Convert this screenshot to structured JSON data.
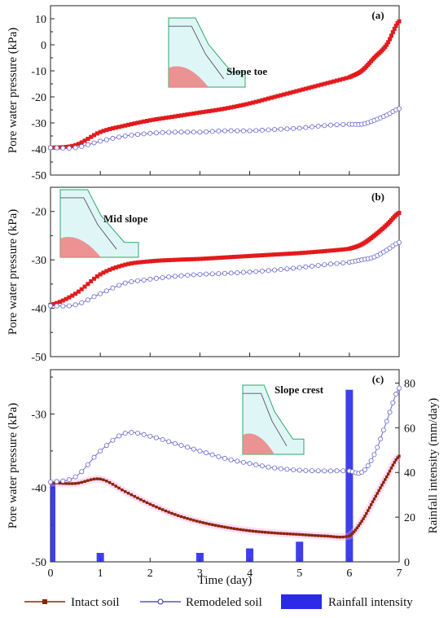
{
  "chart_data": [
    {
      "type": "line",
      "panel_label": "(a)",
      "annotation": "Slope toe",
      "ylabel": "Pore water pressure (kPa)",
      "xlim": [
        0,
        7
      ],
      "ylim": [
        -50,
        15
      ],
      "yticks": [
        -50,
        -40,
        -30,
        -20,
        -10,
        0,
        10
      ],
      "x": [
        0,
        0.5,
        1,
        1.5,
        2,
        2.5,
        3,
        3.5,
        4,
        4.5,
        5,
        5.5,
        6,
        6.25,
        6.5,
        6.75,
        7
      ],
      "series": [
        {
          "name": "Intact soil",
          "values": [
            -39.5,
            -38.5,
            -33.5,
            -31,
            -29,
            -27.5,
            -26,
            -24.5,
            -22.5,
            -20,
            -17.5,
            -15,
            -12.5,
            -10,
            -5,
            0,
            9
          ]
        },
        {
          "name": "Remodeled soil",
          "values": [
            -39.5,
            -39.5,
            -37,
            -35,
            -34,
            -33.5,
            -33.5,
            -33,
            -33,
            -32.5,
            -32,
            -31,
            -30.5,
            -30.5,
            -29,
            -27,
            -24.5
          ]
        }
      ]
    },
    {
      "type": "line",
      "panel_label": "(b)",
      "annotation": "Mid slope",
      "ylabel": "Pore water pressure (kPa)",
      "xlim": [
        0,
        7
      ],
      "ylim": [
        -50,
        -15
      ],
      "yticks": [
        -50,
        -40,
        -30,
        -20
      ],
      "x": [
        0,
        0.5,
        1,
        1.5,
        2,
        2.5,
        3,
        3.5,
        4,
        4.5,
        5,
        5.5,
        6,
        6.25,
        6.5,
        6.75,
        7
      ],
      "series": [
        {
          "name": "Intact soil",
          "values": [
            -39.3,
            -37,
            -33,
            -31,
            -30.3,
            -30,
            -29.8,
            -29.5,
            -29.2,
            -28.9,
            -28.6,
            -28.2,
            -27.7,
            -26.8,
            -25,
            -22.8,
            -20.3
          ]
        },
        {
          "name": "Remodeled soil",
          "values": [
            -39.5,
            -39.3,
            -37,
            -34.8,
            -34,
            -33.4,
            -33,
            -32.8,
            -32.5,
            -32.1,
            -31.6,
            -31,
            -30.5,
            -30,
            -29.4,
            -28,
            -26.4
          ]
        }
      ]
    },
    {
      "type": "line",
      "panel_label": "(c)",
      "annotation": "Slope crest",
      "xlabel": "Time (day)",
      "ylabel": "Pore water pressure (kPa)",
      "y2label": "Rainfall intensity (mm/day)",
      "xlim": [
        0,
        7
      ],
      "ylim": [
        -50,
        -24
      ],
      "yticks": [
        -50,
        -40,
        -30
      ],
      "y2lim": [
        0,
        86
      ],
      "y2ticks": [
        0,
        20,
        40,
        60,
        80
      ],
      "xticks": [
        0,
        1,
        2,
        3,
        4,
        5,
        6,
        7
      ],
      "x": [
        0,
        0.5,
        1,
        1.5,
        2,
        2.5,
        3,
        3.5,
        4,
        4.5,
        5,
        5.5,
        6,
        6.25,
        6.5,
        6.75,
        7
      ],
      "series": [
        {
          "name": "Intact soil",
          "values": [
            -39.3,
            -39.4,
            -38.8,
            -40.5,
            -42.2,
            -43.6,
            -44.6,
            -45.3,
            -45.8,
            -46.1,
            -46.3,
            -46.5,
            -46.5,
            -44.5,
            -41.5,
            -38.5,
            -35.7
          ]
        },
        {
          "name": "Remodeled soil",
          "values": [
            -39.2,
            -38.5,
            -35,
            -32.6,
            -33,
            -34,
            -35,
            -36,
            -36.7,
            -37.3,
            -37.6,
            -37.7,
            -37.7,
            -37.9,
            -35.5,
            -31,
            -26.5
          ]
        }
      ],
      "bars": {
        "name": "Rainfall intensity",
        "x": [
          0,
          1,
          3,
          4,
          5,
          6
        ],
        "values": [
          36,
          4,
          4,
          6,
          9,
          77
        ]
      }
    }
  ],
  "legend": {
    "intact": "Intact soil",
    "remodeled": "Remodeled soil",
    "rainfall": "Rainfall intensity"
  },
  "colors": {
    "intact": "#e31a1c",
    "intact_c": "#8b2500",
    "remodeled": "#6a6acd",
    "rain": "#2a2ae8",
    "slope_fill": "#dff6f6",
    "slope_line": "#2aa86a",
    "soil_red": "#f08080"
  }
}
